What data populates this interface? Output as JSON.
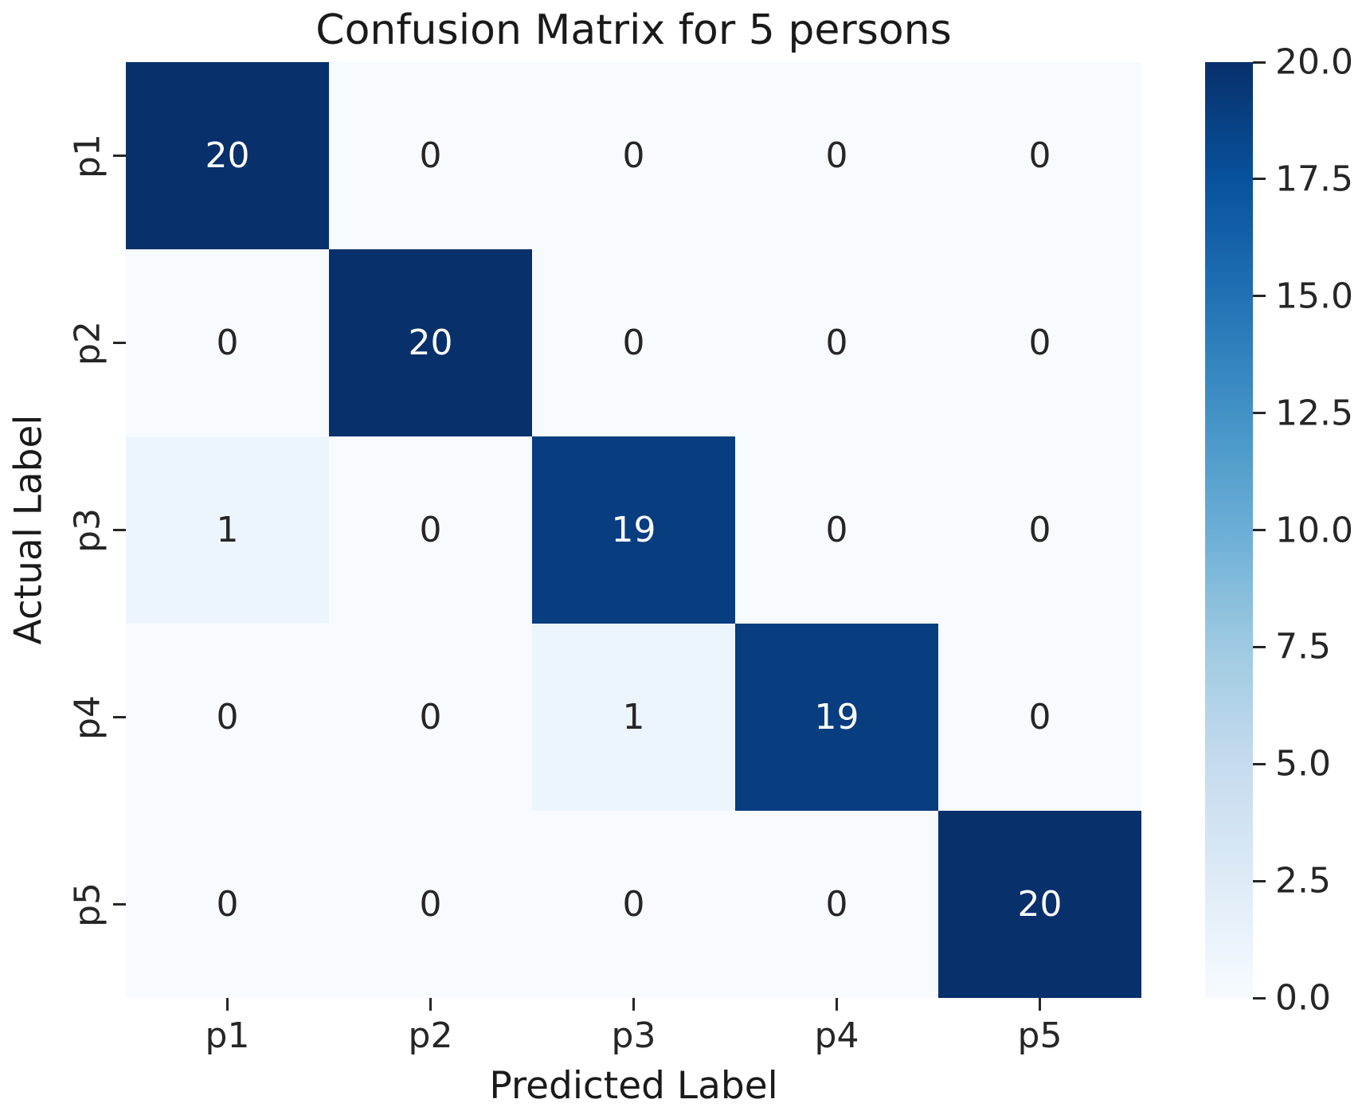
{
  "figure": {
    "background": "#ffffff",
    "text_color": "#1a1a1a",
    "tick_color": "#262626"
  },
  "chart_data": {
    "type": "heatmap",
    "title": "Confusion Matrix for 5 persons",
    "xlabel": "Predicted Label",
    "ylabel": "Actual Label",
    "x_tick_labels": [
      "p1",
      "p2",
      "p3",
      "p4",
      "p5"
    ],
    "y_tick_labels": [
      "p1",
      "p2",
      "p3",
      "p4",
      "p5"
    ],
    "matrix": [
      [
        20,
        0,
        0,
        0,
        0
      ],
      [
        0,
        20,
        0,
        0,
        0
      ],
      [
        1,
        0,
        19,
        0,
        0
      ],
      [
        0,
        0,
        1,
        19,
        0
      ],
      [
        0,
        0,
        0,
        0,
        20
      ]
    ],
    "vmin": 0,
    "vmax": 20,
    "colormap": "Blues",
    "colormap_stops": [
      [
        0.0,
        "#f7fbff"
      ],
      [
        0.125,
        "#deebf7"
      ],
      [
        0.25,
        "#c6dbef"
      ],
      [
        0.375,
        "#9ecae1"
      ],
      [
        0.5,
        "#6baed6"
      ],
      [
        0.625,
        "#4292c6"
      ],
      [
        0.75,
        "#2171b5"
      ],
      [
        0.875,
        "#08519c"
      ],
      [
        1.0,
        "#08306b"
      ]
    ],
    "colorbar_tick_labels": [
      "0.0",
      "2.5",
      "5.0",
      "7.5",
      "10.0",
      "12.5",
      "15.0",
      "17.5",
      "20.0"
    ],
    "annotation_color_light_cells": "#262626",
    "annotation_color_dark_cells": "#ffffff",
    "grid": false,
    "legend_position": "colorbar-right"
  }
}
